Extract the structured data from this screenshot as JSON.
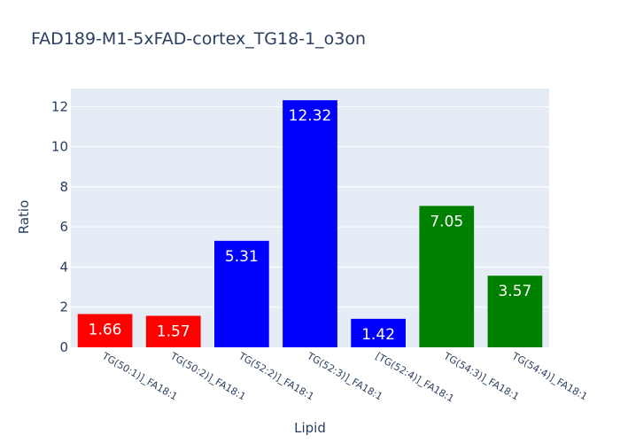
{
  "chart_data": {
    "type": "bar",
    "title": "FAD189-M1-5xFAD-cortex_TG18-1_o3on",
    "xlabel": "Lipid",
    "ylabel": "Ratio",
    "categories": [
      "TG(50:1)]_FA18:1",
      "TG(50:2)]_FA18:1",
      "TG(52:2)]_FA18:1",
      "TG(52:3)]_FA18:1",
      "[TG(52:4)]_FA18:1",
      "TG(54:3)]_FA18:1",
      "TG(54:4)]_FA18:1"
    ],
    "values": [
      1.66,
      1.57,
      5.31,
      12.32,
      1.42,
      7.05,
      3.57
    ],
    "value_labels": [
      "1.66",
      "1.57",
      "5.31",
      "12.32",
      "1.42",
      "7.05",
      "3.57"
    ],
    "bar_colors": [
      "#ff0000",
      "#ff0000",
      "#0000ff",
      "#0000ff",
      "#0000ff",
      "#008000",
      "#008000"
    ],
    "ylim": [
      0,
      12.9
    ],
    "yticks": [
      0,
      2,
      4,
      6,
      8,
      10,
      12
    ],
    "grid": true,
    "plot_bg": "#e5ecf6",
    "text_color": "#2a3f5f"
  }
}
